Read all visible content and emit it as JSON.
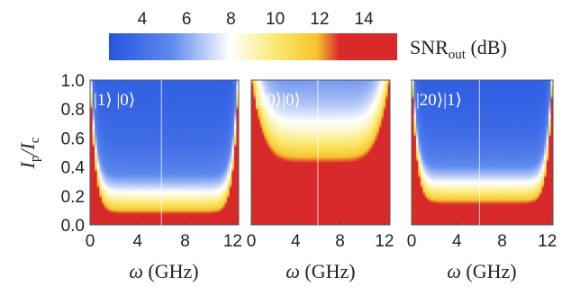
{
  "chart_data": {
    "type": "heatmap",
    "colorbar": {
      "label_main": "SNR",
      "label_sub": "out",
      "label_unit": " (dB)",
      "ticks": [
        "4",
        "6",
        "8",
        "10",
        "12",
        "14"
      ],
      "range": [
        2.5,
        15.5
      ],
      "colors": [
        "#2554e0",
        "#5f8aee",
        "#ffffff",
        "#fbe870",
        "#f5c52c",
        "#d82a2a"
      ]
    },
    "shared_axes": {
      "ylabel_main": "I",
      "ylabel_sub_num": "p",
      "ylabel_sub_den": "c",
      "ylabel_sep": "/I",
      "y_ticks": [
        "0.0",
        "0.2",
        "0.4",
        "0.6",
        "0.8",
        "1.0"
      ],
      "ylim": [
        0,
        1
      ],
      "xlabel_sym": "ω",
      "xlabel_unit": " (GHz)",
      "x_ticks": [
        "0",
        "4",
        "8",
        "12"
      ],
      "xlim": [
        0,
        12.5
      ]
    },
    "panels": [
      {
        "label": "|1⟩ |0⟩",
        "vline_x": 6,
        "boundary_I": 0.07,
        "floor_snr": 3.2
      },
      {
        "label": "|20⟩|0⟩",
        "vline_x": 6,
        "boundary_I": 0.42,
        "floor_snr": 5.0
      },
      {
        "label": "|20⟩|1⟩",
        "vline_x": 6,
        "boundary_I": 0.14,
        "floor_snr": 3.0
      }
    ]
  }
}
